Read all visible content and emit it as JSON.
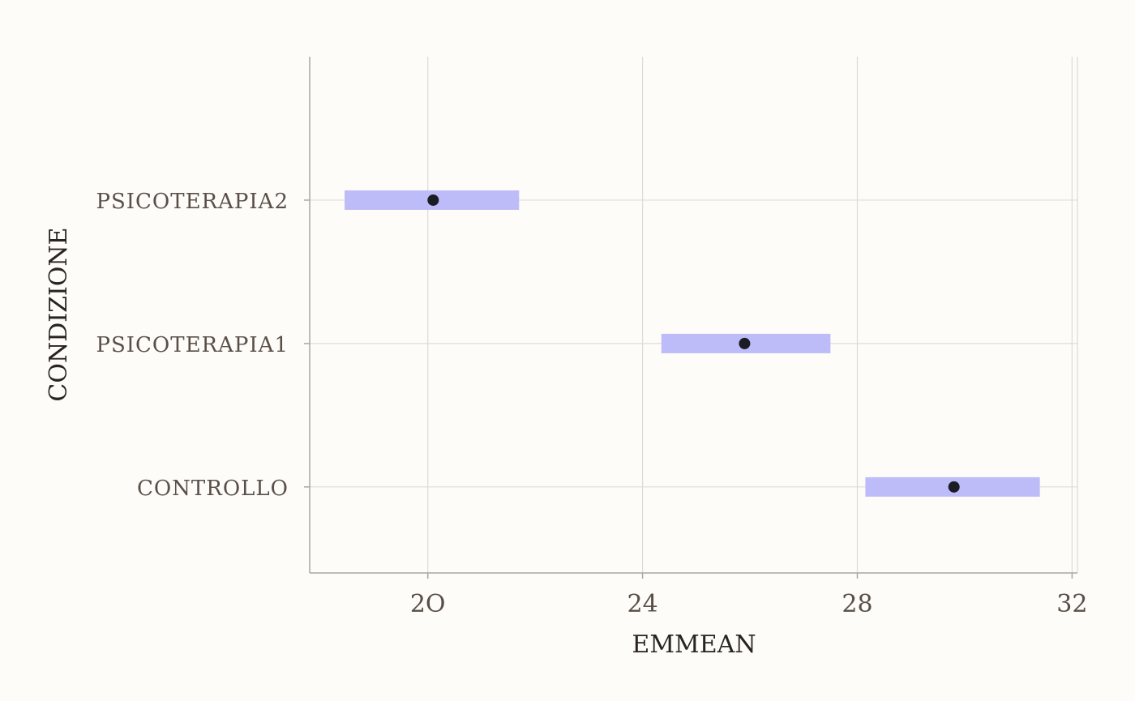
{
  "chart_data": {
    "type": "scatter",
    "xlabel": "EMMEAN",
    "ylabel": "CONDIZIONE",
    "xlim": [
      17.8,
      32.1
    ],
    "x_ticks": [
      {
        "value": 20,
        "label": "2O"
      },
      {
        "value": 24,
        "label": "24"
      },
      {
        "value": 28,
        "label": "28"
      },
      {
        "value": 32,
        "label": "32"
      }
    ],
    "categories": [
      "CONTROLLO",
      "PSICOTERAPIA1",
      "PSICOTERAPIA2"
    ],
    "points": [
      {
        "category": "CONTROLLO",
        "emmean": 29.8,
        "lower": 28.15,
        "upper": 31.4
      },
      {
        "category": "PSICOTERAPIA1",
        "emmean": 25.9,
        "lower": 24.35,
        "upper": 27.5
      },
      {
        "category": "PSICOTERAPIA2",
        "emmean": 20.1,
        "lower": 18.45,
        "upper": 21.7
      }
    ],
    "grid": true,
    "legend": "none",
    "colors": {
      "interval": "#bdbcf8",
      "point": "#1c1c24",
      "grid": "#dddbd8",
      "axis": "#aaa7a3"
    }
  }
}
